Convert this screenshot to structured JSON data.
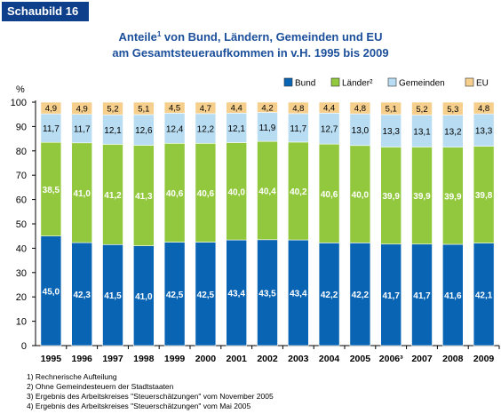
{
  "badge": "Schaubild 16",
  "title_line1": "Anteile",
  "title_sup": "1",
  "title_line1_rest": " von Bund, Ländern, Gemeinden und EU",
  "title_line2": "am Gesamtsteueraufkommen in v.H. 1995 bis 2009",
  "footnotes": [
    "1) Rechnerische Aufteilung",
    "2) Ohne Gemeindesteuern der Stadtstaaten",
    "3) Ergebnis des Arbeitskreises \"Steuerschätzungen\" vom November 2005",
    "4) Ergebnis des Arbeitskreises \"Steuerschätzungen\" vom Mai 2005"
  ],
  "chart_data": {
    "type": "bar",
    "stacked": true,
    "ylabel": "%",
    "ylim": [
      0,
      100
    ],
    "yticks": [
      0,
      10,
      20,
      30,
      40,
      50,
      60,
      70,
      80,
      90,
      100
    ],
    "grid": false,
    "legend_position": "top-right",
    "categories": [
      "1995",
      "1996",
      "1997",
      "1998",
      "1999",
      "2000",
      "2001",
      "2002",
      "2003",
      "2004",
      "2005",
      "2006³",
      "2007",
      "2008",
      "2009"
    ],
    "series": [
      {
        "name": "Bund",
        "color": "#0a64b4",
        "values": [
          45.0,
          42.3,
          41.5,
          41.0,
          42.5,
          42.5,
          43.4,
          43.5,
          43.4,
          42.2,
          42.2,
          41.7,
          41.7,
          41.6,
          42.1
        ],
        "labels": [
          "45,0",
          "42,3",
          "41,5",
          "41,0",
          "42,5",
          "42,5",
          "43,4",
          "43,5",
          "43,4",
          "42,2",
          "42,2",
          "41,7",
          "41,7",
          "41,6",
          "42,1"
        ]
      },
      {
        "name": "Länder²",
        "color": "#92c83e",
        "values": [
          38.5,
          41.0,
          41.2,
          41.3,
          40.6,
          40.6,
          40.0,
          40.4,
          40.2,
          40.6,
          40.0,
          39.9,
          39.9,
          39.9,
          39.8
        ],
        "labels": [
          "38,5",
          "41,0",
          "41,2",
          "41,3",
          "40,6",
          "40,6",
          "40,0",
          "40,4",
          "40,2",
          "40,6",
          "40,0",
          "39,9",
          "39,9",
          "39,9",
          "39,8"
        ]
      },
      {
        "name": "Gemeinden",
        "color": "#b8dcf2",
        "values": [
          11.7,
          11.7,
          12.1,
          12.6,
          12.4,
          12.2,
          12.1,
          11.9,
          11.7,
          12.7,
          13.0,
          13.3,
          13.1,
          13.2,
          13.3
        ],
        "labels": [
          "11,7",
          "11,7",
          "12,1",
          "12,6",
          "12,4",
          "12,2",
          "12,1",
          "11,9",
          "11,7",
          "12,7",
          "13,0",
          "13,3",
          "13,1",
          "13,2",
          "13,3"
        ]
      },
      {
        "name": "EU",
        "color": "#f6cf8c",
        "values": [
          4.9,
          4.9,
          5.2,
          5.1,
          4.5,
          4.7,
          4.4,
          4.2,
          4.8,
          4.4,
          4.8,
          5.1,
          5.2,
          5.3,
          4.8
        ],
        "labels": [
          "4,9",
          "4,9",
          "5,2",
          "5,1",
          "4,5",
          "4,7",
          "4,4",
          "4,2",
          "4,8",
          "4,4",
          "4,8",
          "5,1",
          "5,2",
          "5,3",
          "4,8"
        ]
      }
    ]
  }
}
